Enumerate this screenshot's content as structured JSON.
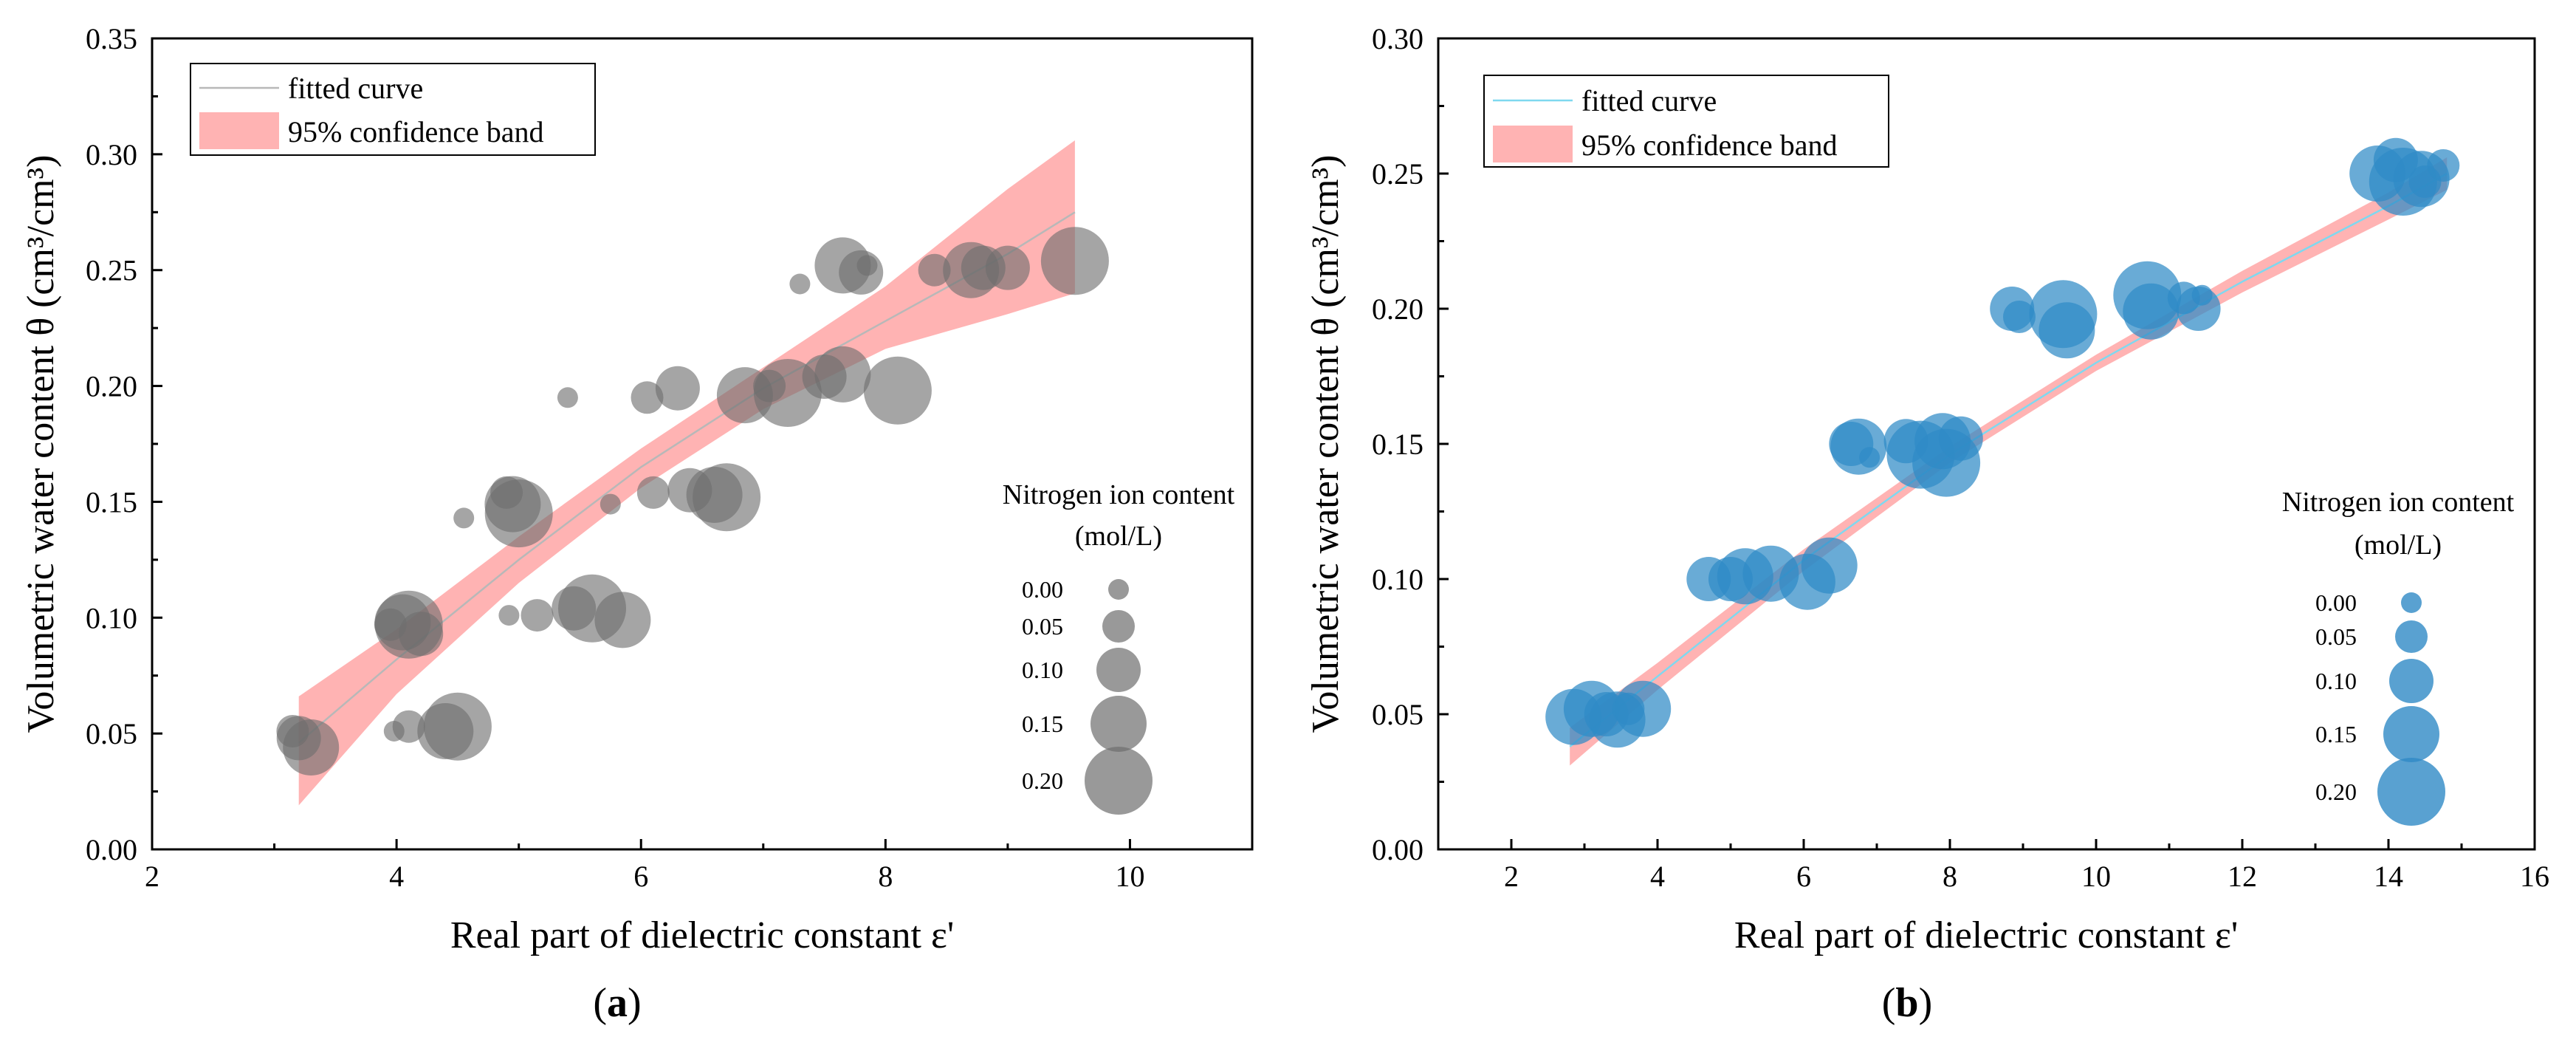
{
  "chart_data": [
    {
      "type": "scatter",
      "panel_label": "a",
      "xlabel": "Real part of dielectric constant ε'",
      "ylabel": "Volumetric water content θ (cm³/cm³)",
      "xlim": [
        2,
        11
      ],
      "ylim": [
        0,
        0.35
      ],
      "xticks": [
        2,
        4,
        6,
        8,
        10
      ],
      "xtick_labels": [
        "2",
        "4",
        "6",
        "8",
        "10"
      ],
      "yticks": [
        0,
        0.05,
        0.1,
        0.15,
        0.2,
        0.25,
        0.3,
        0.35
      ],
      "ytick_labels": [
        "0.00",
        "0.05",
        "0.10",
        "0.15",
        "0.20",
        "0.25",
        "0.30",
        "0.35"
      ],
      "legend": {
        "curve_label": "fitted curve",
        "band_label": "95% confidence band",
        "position": "top-left"
      },
      "curve_color": "#b8b8b8",
      "band_color": "#ff9a9a",
      "point_color": "#6e6e6e",
      "size_legend": {
        "title_line1": "Nitrogen ion content",
        "title_line2": "(mol/L)",
        "levels": [
          {
            "label": "0.00",
            "value": 0.0
          },
          {
            "label": "0.05",
            "value": 0.05
          },
          {
            "label": "0.10",
            "value": 0.1
          },
          {
            "label": "0.15",
            "value": 0.15
          },
          {
            "label": "0.20",
            "value": 0.2
          }
        ]
      },
      "fit_curve": {
        "x": [
          3.2,
          4.0,
          5.0,
          6.0,
          7.0,
          8.0,
          9.0,
          9.55
        ],
        "y": [
          0.046,
          0.082,
          0.125,
          0.165,
          0.199,
          0.228,
          0.257,
          0.275
        ]
      },
      "band_upper": {
        "x": [
          3.2,
          4.0,
          5.0,
          6.0,
          7.0,
          8.0,
          9.0,
          9.55
        ],
        "y": [
          0.066,
          0.095,
          0.135,
          0.173,
          0.208,
          0.243,
          0.285,
          0.306
        ]
      },
      "band_lower": {
        "x": [
          3.2,
          4.0,
          5.0,
          6.0,
          7.0,
          8.0,
          9.0,
          9.55
        ],
        "y": [
          0.019,
          0.067,
          0.115,
          0.156,
          0.19,
          0.216,
          0.231,
          0.24
        ]
      },
      "points": [
        {
          "x": 3.15,
          "y": 0.051,
          "n": 0.05
        },
        {
          "x": 3.2,
          "y": 0.048,
          "n": 0.1
        },
        {
          "x": 3.3,
          "y": 0.044,
          "n": 0.15
        },
        {
          "x": 3.95,
          "y": 0.097,
          "n": 0.05
        },
        {
          "x": 4.05,
          "y": 0.098,
          "n": 0.15
        },
        {
          "x": 4.1,
          "y": 0.097,
          "n": 0.2
        },
        {
          "x": 4.2,
          "y": 0.093,
          "n": 0.1
        },
        {
          "x": 3.98,
          "y": 0.051,
          "n": 0.0
        },
        {
          "x": 4.1,
          "y": 0.053,
          "n": 0.05
        },
        {
          "x": 4.4,
          "y": 0.051,
          "n": 0.15
        },
        {
          "x": 4.5,
          "y": 0.053,
          "n": 0.2
        },
        {
          "x": 4.55,
          "y": 0.143,
          "n": 0.0
        },
        {
          "x": 4.9,
          "y": 0.154,
          "n": 0.05
        },
        {
          "x": 4.95,
          "y": 0.149,
          "n": 0.15
        },
        {
          "x": 5.0,
          "y": 0.145,
          "n": 0.2
        },
        {
          "x": 4.92,
          "y": 0.101,
          "n": 0.0
        },
        {
          "x": 5.15,
          "y": 0.101,
          "n": 0.05
        },
        {
          "x": 5.4,
          "y": 0.195,
          "n": 0.0
        },
        {
          "x": 5.45,
          "y": 0.104,
          "n": 0.1
        },
        {
          "x": 5.6,
          "y": 0.104,
          "n": 0.2
        },
        {
          "x": 5.75,
          "y": 0.149,
          "n": 0.0
        },
        {
          "x": 5.85,
          "y": 0.099,
          "n": 0.15
        },
        {
          "x": 6.05,
          "y": 0.195,
          "n": 0.05
        },
        {
          "x": 6.1,
          "y": 0.154,
          "n": 0.05
        },
        {
          "x": 6.3,
          "y": 0.199,
          "n": 0.1
        },
        {
          "x": 6.4,
          "y": 0.155,
          "n": 0.1
        },
        {
          "x": 6.6,
          "y": 0.153,
          "n": 0.15
        },
        {
          "x": 6.7,
          "y": 0.152,
          "n": 0.2
        },
        {
          "x": 6.85,
          "y": 0.196,
          "n": 0.15
        },
        {
          "x": 7.05,
          "y": 0.2,
          "n": 0.05
        },
        {
          "x": 7.2,
          "y": 0.197,
          "n": 0.2
        },
        {
          "x": 7.3,
          "y": 0.244,
          "n": 0.0
        },
        {
          "x": 7.5,
          "y": 0.204,
          "n": 0.1
        },
        {
          "x": 7.65,
          "y": 0.252,
          "n": 0.15
        },
        {
          "x": 7.65,
          "y": 0.205,
          "n": 0.15
        },
        {
          "x": 7.8,
          "y": 0.249,
          "n": 0.1
        },
        {
          "x": 7.85,
          "y": 0.252,
          "n": 0.0
        },
        {
          "x": 8.1,
          "y": 0.198,
          "n": 0.2
        },
        {
          "x": 8.4,
          "y": 0.25,
          "n": 0.05
        },
        {
          "x": 8.7,
          "y": 0.25,
          "n": 0.15
        },
        {
          "x": 8.8,
          "y": 0.251,
          "n": 0.1
        },
        {
          "x": 9.0,
          "y": 0.251,
          "n": 0.1
        },
        {
          "x": 9.55,
          "y": 0.254,
          "n": 0.2
        }
      ]
    },
    {
      "type": "scatter",
      "panel_label": "b",
      "xlabel": "Real part of dielectric constant ε'",
      "ylabel": "Volumetric water content θ (cm³/cm³)",
      "xlim": [
        1,
        16
      ],
      "ylim": [
        0,
        0.3
      ],
      "xticks": [
        2,
        4,
        6,
        8,
        10,
        12,
        14,
        16
      ],
      "xtick_labels": [
        "2",
        "4",
        "6",
        "8",
        "10",
        "12",
        "14",
        "16"
      ],
      "yticks": [
        0,
        0.05,
        0.1,
        0.15,
        0.2,
        0.25,
        0.3
      ],
      "ytick_labels": [
        "0.00",
        "0.05",
        "0.10",
        "0.15",
        "0.20",
        "0.25",
        "0.30"
      ],
      "legend": {
        "curve_label": "fitted curve",
        "band_label": "95% confidence band",
        "position": "top-left"
      },
      "curve_color": "#7fd8ef",
      "band_color": "#ff9a9a",
      "point_color": "#2f8ac6",
      "size_legend": {
        "title_line1": "Nitrogen ion content",
        "title_line2": "(mol/L)",
        "levels": [
          {
            "label": "0.00",
            "value": 0.0
          },
          {
            "label": "0.05",
            "value": 0.05
          },
          {
            "label": "0.10",
            "value": 0.1
          },
          {
            "label": "0.15",
            "value": 0.15
          },
          {
            "label": "0.20",
            "value": 0.2
          }
        ]
      },
      "fit_curve": {
        "x": [
          2.8,
          4.0,
          6.0,
          8.0,
          10.0,
          12.0,
          14.0,
          14.8
        ],
        "y": [
          0.038,
          0.064,
          0.107,
          0.146,
          0.18,
          0.21,
          0.238,
          0.25
        ]
      },
      "band_upper": {
        "x": [
          2.8,
          4.0,
          6.0,
          8.0,
          10.0,
          12.0,
          14.0,
          14.8
        ],
        "y": [
          0.045,
          0.069,
          0.111,
          0.149,
          0.183,
          0.214,
          0.243,
          0.256
        ]
      },
      "band_lower": {
        "x": [
          2.8,
          4.0,
          6.0,
          8.0,
          10.0,
          12.0,
          14.0,
          14.8
        ],
        "y": [
          0.031,
          0.059,
          0.103,
          0.143,
          0.177,
          0.206,
          0.233,
          0.244
        ]
      },
      "points": [
        {
          "x": 2.85,
          "y": 0.049,
          "n": 0.15
        },
        {
          "x": 3.1,
          "y": 0.052,
          "n": 0.15
        },
        {
          "x": 3.3,
          "y": 0.05,
          "n": 0.1
        },
        {
          "x": 3.45,
          "y": 0.048,
          "n": 0.15
        },
        {
          "x": 3.6,
          "y": 0.052,
          "n": 0.05
        },
        {
          "x": 3.8,
          "y": 0.052,
          "n": 0.15
        },
        {
          "x": 4.7,
          "y": 0.1,
          "n": 0.1
        },
        {
          "x": 5.0,
          "y": 0.1,
          "n": 0.1
        },
        {
          "x": 5.2,
          "y": 0.101,
          "n": 0.15
        },
        {
          "x": 5.55,
          "y": 0.102,
          "n": 0.15
        },
        {
          "x": 6.05,
          "y": 0.099,
          "n": 0.15
        },
        {
          "x": 6.35,
          "y": 0.105,
          "n": 0.15
        },
        {
          "x": 6.65,
          "y": 0.15,
          "n": 0.1
        },
        {
          "x": 6.75,
          "y": 0.149,
          "n": 0.15
        },
        {
          "x": 6.9,
          "y": 0.145,
          "n": 0.0
        },
        {
          "x": 7.4,
          "y": 0.151,
          "n": 0.1
        },
        {
          "x": 7.6,
          "y": 0.146,
          "n": 0.2
        },
        {
          "x": 7.9,
          "y": 0.151,
          "n": 0.15
        },
        {
          "x": 7.95,
          "y": 0.143,
          "n": 0.2
        },
        {
          "x": 8.15,
          "y": 0.152,
          "n": 0.1
        },
        {
          "x": 8.85,
          "y": 0.2,
          "n": 0.1
        },
        {
          "x": 8.95,
          "y": 0.197,
          "n": 0.05
        },
        {
          "x": 9.55,
          "y": 0.198,
          "n": 0.2
        },
        {
          "x": 9.6,
          "y": 0.192,
          "n": 0.15
        },
        {
          "x": 10.7,
          "y": 0.205,
          "n": 0.2
        },
        {
          "x": 10.75,
          "y": 0.199,
          "n": 0.15
        },
        {
          "x": 11.2,
          "y": 0.204,
          "n": 0.05
        },
        {
          "x": 11.4,
          "y": 0.2,
          "n": 0.1
        },
        {
          "x": 11.45,
          "y": 0.205,
          "n": 0.0
        },
        {
          "x": 13.85,
          "y": 0.25,
          "n": 0.15
        },
        {
          "x": 14.1,
          "y": 0.255,
          "n": 0.1
        },
        {
          "x": 14.2,
          "y": 0.247,
          "n": 0.2
        },
        {
          "x": 14.45,
          "y": 0.248,
          "n": 0.15
        },
        {
          "x": 14.5,
          "y": 0.247,
          "n": 0.05
        },
        {
          "x": 14.75,
          "y": 0.253,
          "n": 0.05
        }
      ]
    }
  ]
}
